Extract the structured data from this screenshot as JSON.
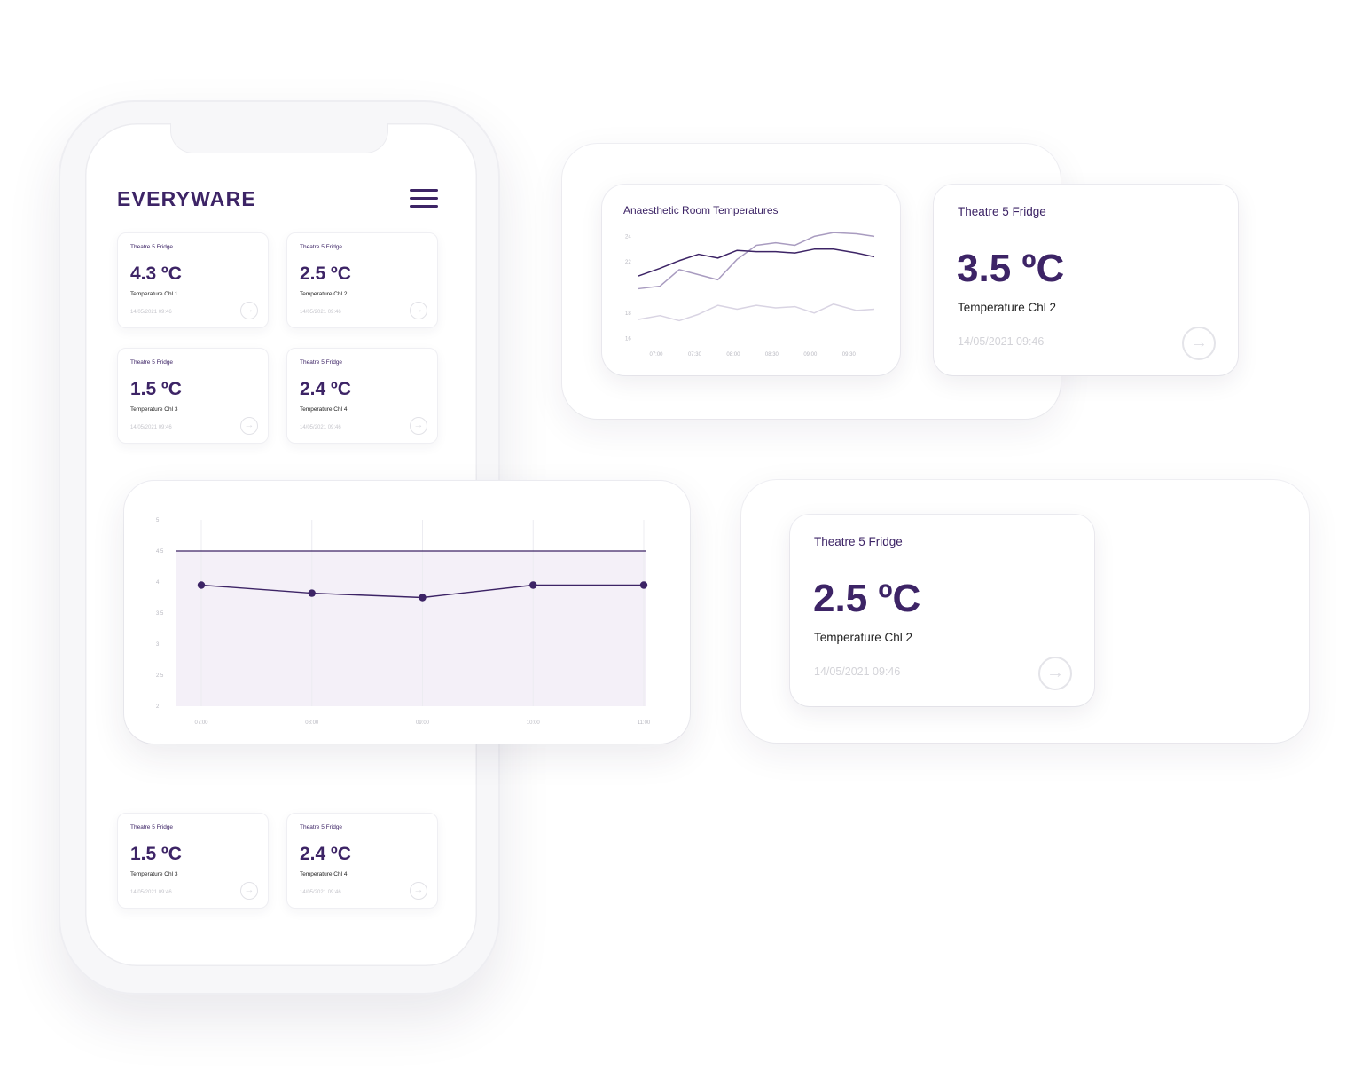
{
  "brand": {
    "logo": "EVERYWARE",
    "accent": "#3d2466",
    "muted": "#c6c6cc"
  },
  "phone": {
    "cards_top": [
      {
        "title": "Theatre 5 Fridge",
        "value": "4.3 ºC",
        "label": "Temperature Chl 1",
        "date": "14/05/2021 09:46"
      },
      {
        "title": "Theatre 5 Fridge",
        "value": "2.5 ºC",
        "label": "Temperature Chl 2",
        "date": "14/05/2021 09:46"
      },
      {
        "title": "Theatre 5 Fridge",
        "value": "1.5 ºC",
        "label": "Temperature Chl 3",
        "date": "14/05/2021 09:46"
      },
      {
        "title": "Theatre 5 Fridge",
        "value": "2.4 ºC",
        "label": "Temperature Chl 4",
        "date": "14/05/2021 09:46"
      }
    ],
    "cards_bottom": [
      {
        "title": "Theatre 5 Fridge",
        "value": "1.5 ºC",
        "label": "Temperature Chl 3",
        "date": "14/05/2021 09:46"
      },
      {
        "title": "Theatre 5 Fridge",
        "value": "2.4 ºC",
        "label": "Temperature Chl 4",
        "date": "14/05/2021 09:46"
      }
    ]
  },
  "room_card": {
    "title": "Anaesthetic Room Temperatures"
  },
  "card_right_top": {
    "title": "Theatre 5 Fridge",
    "value": "3.5 ºC",
    "label": "Temperature Chl 2",
    "date": "14/05/2021 09:46"
  },
  "card_right_bottom": {
    "title": "Theatre 5 Fridge",
    "value": "2.5 ºC",
    "label": "Temperature Chl 2",
    "date": "14/05/2021 09:46"
  },
  "chart_data": [
    {
      "type": "line",
      "title": "Anaesthetic Room Temperatures",
      "categories": [
        "07:00",
        "07:30",
        "08:00",
        "08:30",
        "09:00",
        "09:30"
      ],
      "y_ticks": [
        "24",
        "22",
        "18",
        "16"
      ],
      "ylim": [
        15,
        25
      ],
      "x_range": [
        6.77,
        9.83
      ],
      "series": [
        {
          "color": "#3d2466",
          "x": [
            6.77,
            7.05,
            7.3,
            7.55,
            7.8,
            8.05,
            8.3,
            8.55,
            8.8,
            9.05,
            9.3,
            9.6,
            9.83
          ],
          "values": [
            20.9,
            21.5,
            22.1,
            22.6,
            22.3,
            22.9,
            22.8,
            22.8,
            22.7,
            23.0,
            23.0,
            22.7,
            22.4
          ]
        },
        {
          "color": "#a99cc0",
          "x": [
            6.77,
            7.05,
            7.3,
            7.55,
            7.8,
            8.05,
            8.3,
            8.55,
            8.8,
            9.05,
            9.3,
            9.6,
            9.83
          ],
          "values": [
            19.9,
            20.1,
            21.4,
            21.0,
            20.6,
            22.2,
            23.3,
            23.5,
            23.3,
            24.0,
            24.3,
            24.2,
            24.0
          ]
        },
        {
          "color": "#d9d4e3",
          "x": [
            6.77,
            7.05,
            7.3,
            7.55,
            7.8,
            8.05,
            8.3,
            8.55,
            8.8,
            9.05,
            9.3,
            9.6,
            9.83
          ],
          "values": [
            17.5,
            17.8,
            17.4,
            17.9,
            18.6,
            18.3,
            18.6,
            18.4,
            18.5,
            18.0,
            18.7,
            18.2,
            18.3
          ]
        }
      ]
    },
    {
      "type": "line",
      "categories": [
        "07:00",
        "08:00",
        "09:00",
        "10:00",
        "11:00"
      ],
      "values": [
        3.95,
        3.82,
        3.75,
        3.95,
        3.95
      ],
      "y_ticks": [
        "5",
        "4.5",
        "4",
        "3.5",
        "3",
        "2.5",
        "2"
      ],
      "ylim": [
        2,
        5
      ],
      "threshold": 4.5,
      "series_color": "#3d2466",
      "band_color": "#f4f0f8"
    }
  ]
}
